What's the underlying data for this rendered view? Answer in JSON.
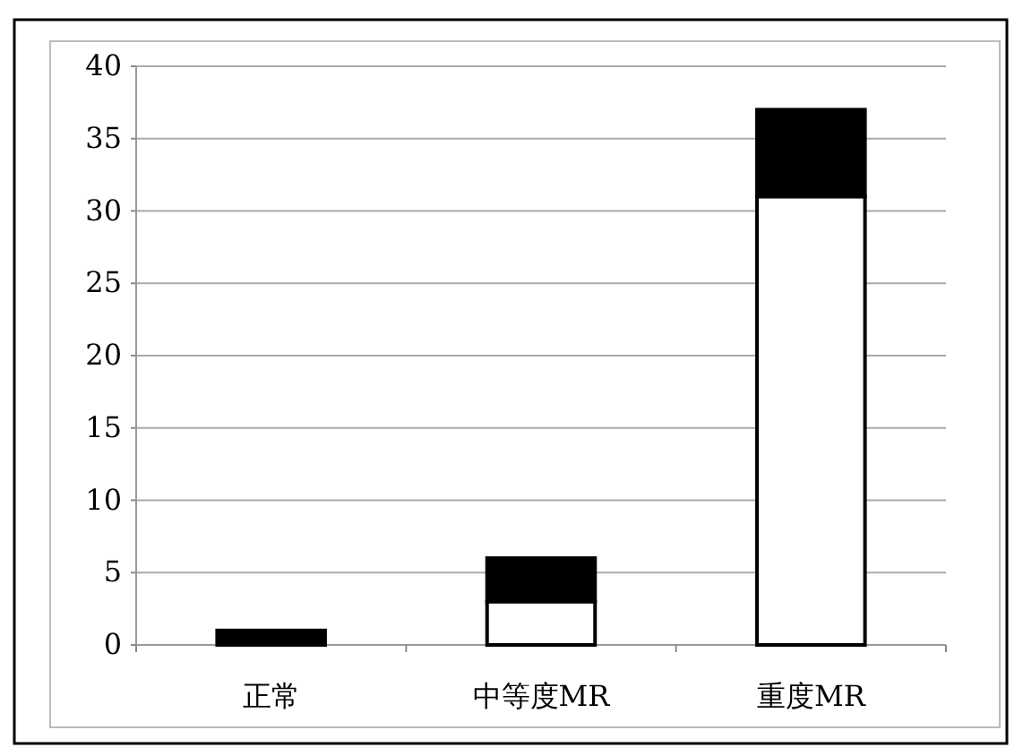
{
  "chart_data": {
    "type": "bar",
    "stacked": true,
    "categories": [
      "正常",
      "中等度MR",
      "重度MR"
    ],
    "series": [
      {
        "color": "#ffffff",
        "values": [
          0,
          3,
          31
        ]
      },
      {
        "color": "#000000",
        "values": [
          1,
          3,
          6
        ]
      }
    ],
    "ylim": [
      0,
      40
    ],
    "yticks": [
      0,
      5,
      10,
      15,
      20,
      25,
      30,
      35,
      40
    ],
    "grid": "y"
  }
}
